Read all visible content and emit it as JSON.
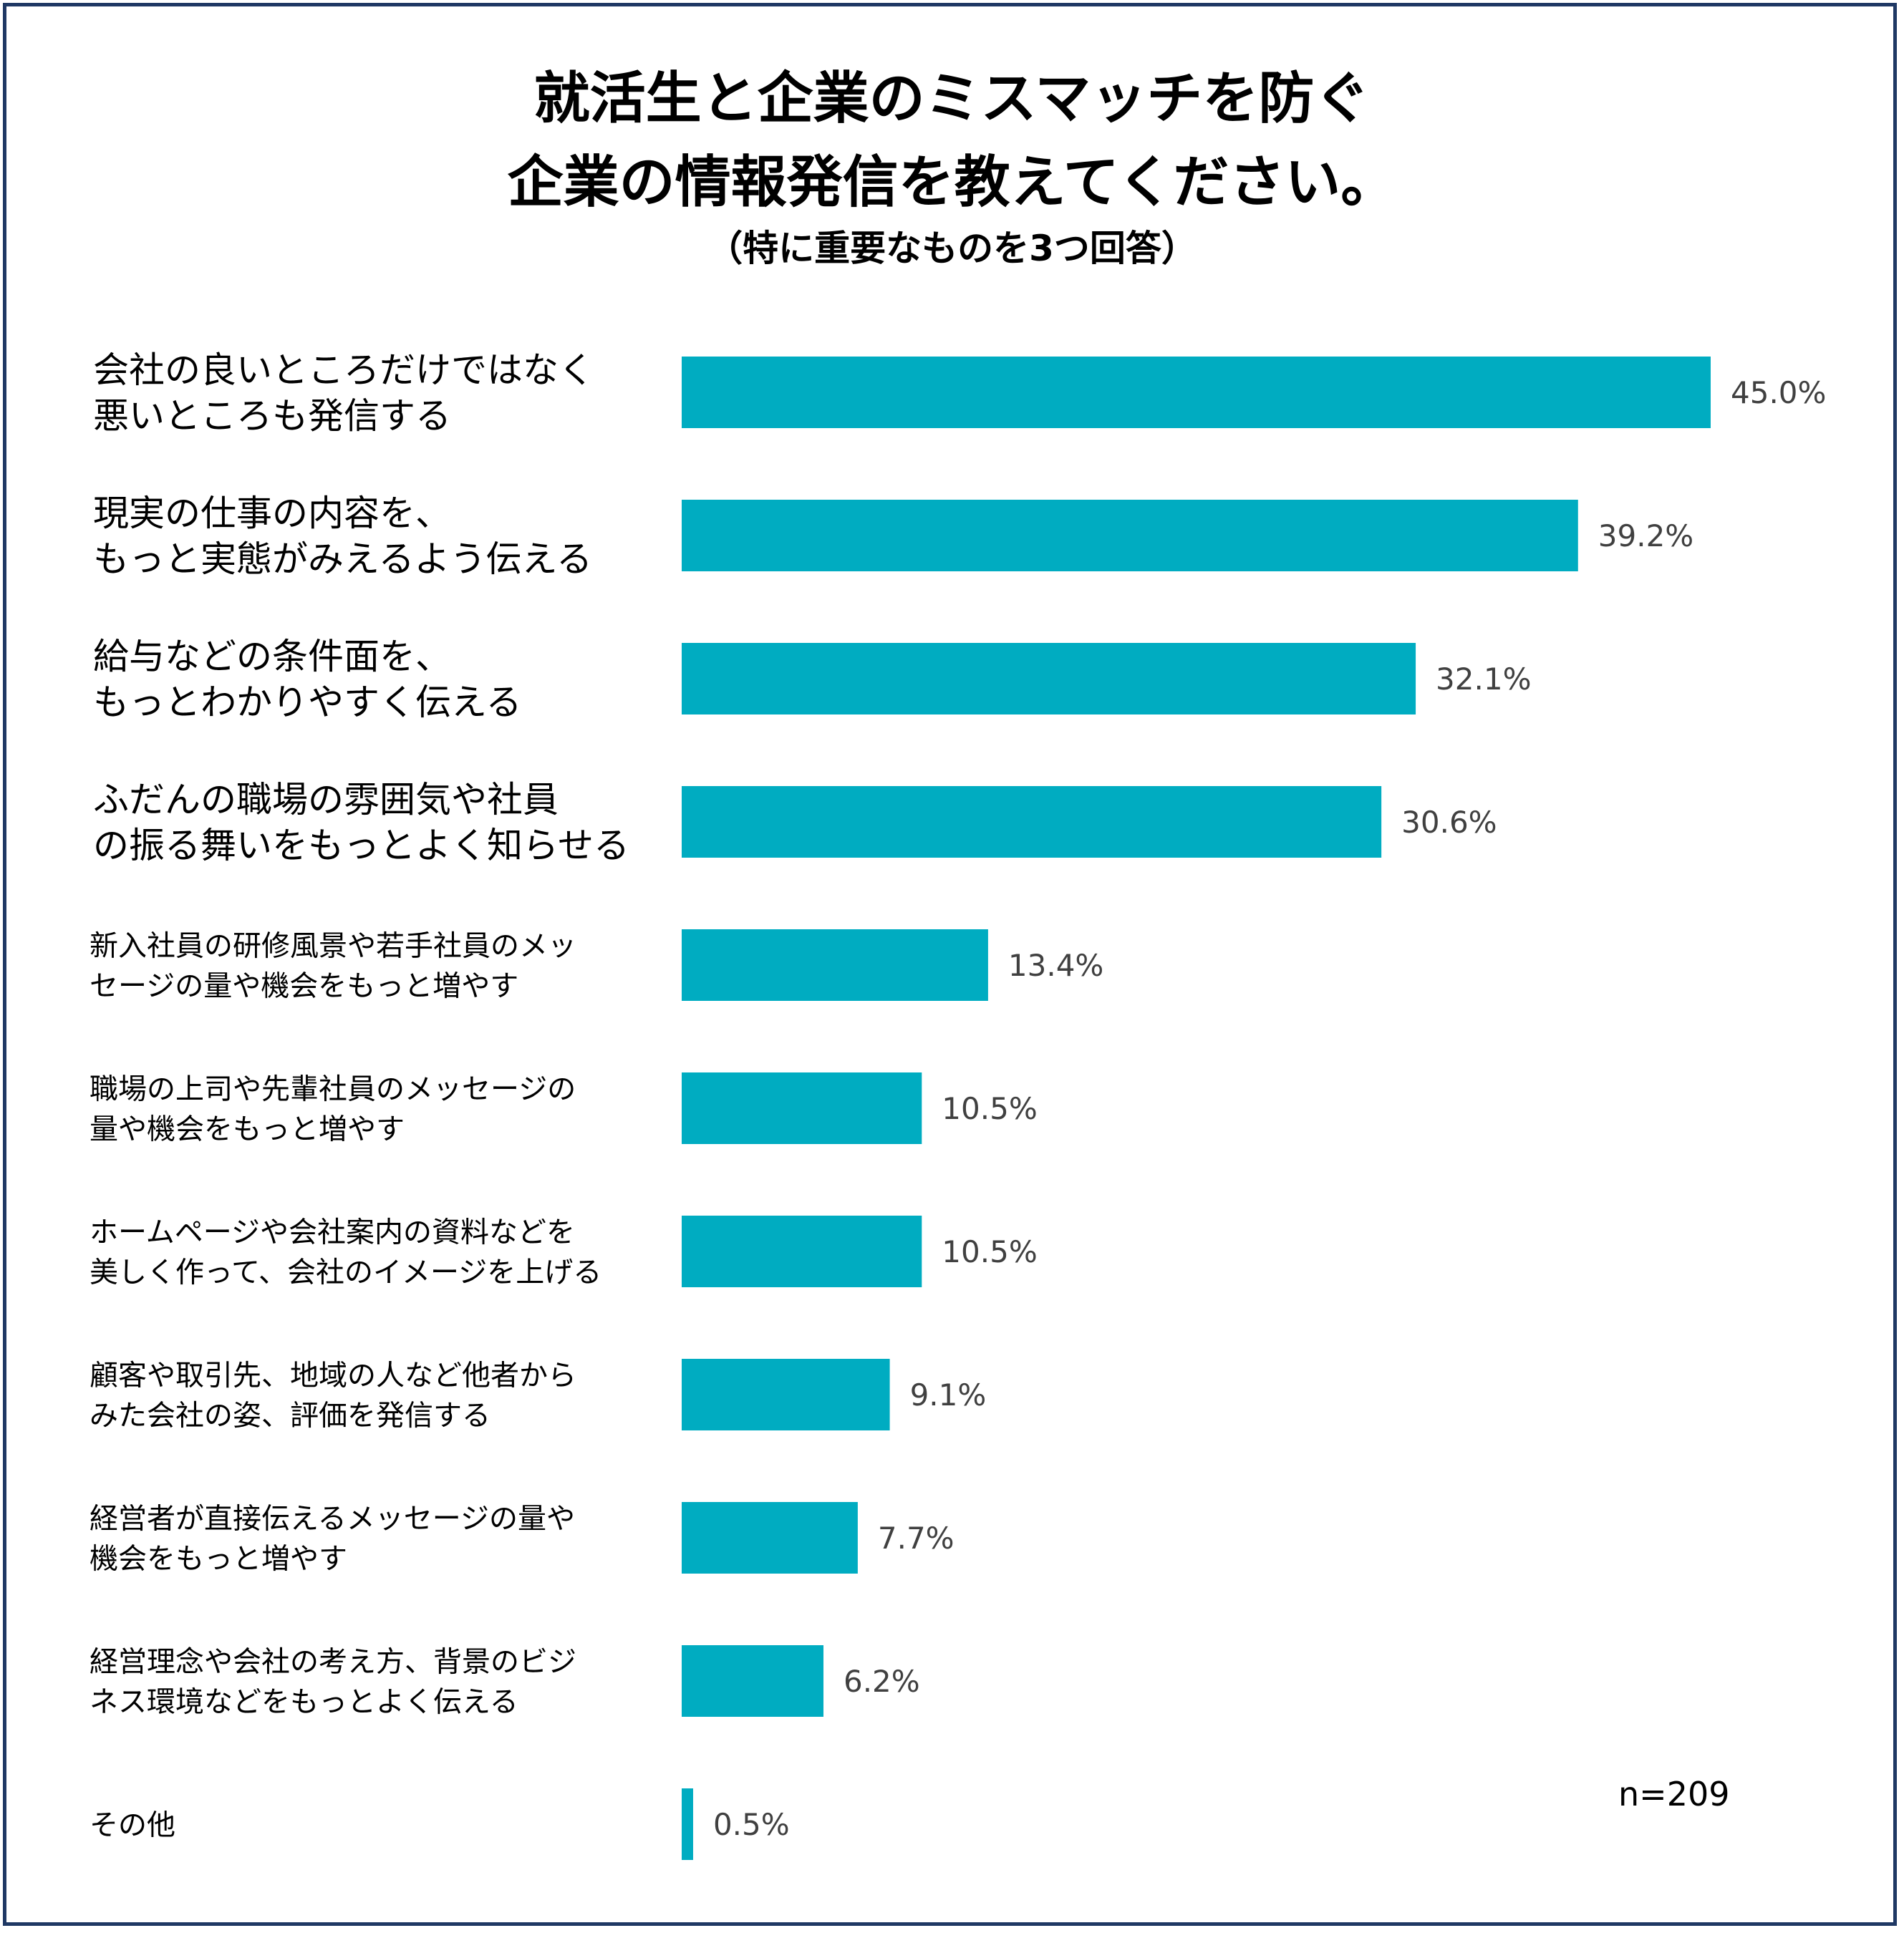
{
  "chart_data": {
    "type": "bar",
    "orientation": "horizontal",
    "title_lines": [
      "就活生と企業のミスマッチを防ぐ",
      "企業の情報発信を教えてください。"
    ],
    "subtitle": "（特に重要なものを3つ回答）",
    "categories": [
      [
        "会社の良いところだけではなく",
        "悪いところも発信する"
      ],
      [
        "現実の仕事の内容を、",
        "もっと実態がみえるよう伝える"
      ],
      [
        "給与などの条件面を、",
        "もっとわかりやすく伝える"
      ],
      [
        "ふだんの職場の雰囲気や社員",
        "の振る舞いをもっとよく知らせる"
      ],
      [
        "新入社員の研修風景や若手社員のメッ",
        "セージの量や機会をもっと増やす"
      ],
      [
        "職場の上司や先輩社員のメッセージの",
        "量や機会をもっと増やす"
      ],
      [
        "ホームページや会社案内の資料などを",
        "美しく作って、会社のイメージを上げる"
      ],
      [
        "顧客や取引先、地域の人など他者から",
        "みた会社の姿、評価を発信する"
      ],
      [
        "経営者が直接伝えるメッセージの量や",
        "機会をもっと増やす"
      ],
      [
        "経営理念や会社の考え方、背景のビジ",
        "ネス環境などをもっとよく伝える"
      ],
      [
        "その他"
      ]
    ],
    "values": [
      45.0,
      39.2,
      32.1,
      30.6,
      13.4,
      10.5,
      10.5,
      9.1,
      7.7,
      6.2,
      0.5
    ],
    "value_labels": [
      "45.0%",
      "39.2%",
      "32.1%",
      "30.6%",
      "13.4%",
      "10.5%",
      "10.5%",
      "9.1%",
      "7.7%",
      "6.2%",
      "0.5%"
    ],
    "unit": "%",
    "xlim": [
      0,
      45.0
    ],
    "grid": false,
    "bar_color": "#00acc1",
    "sample_size": "n=209"
  },
  "colors": {
    "frame": "#1f3864",
    "bar": "#00acc1",
    "value_text": "#404040"
  }
}
